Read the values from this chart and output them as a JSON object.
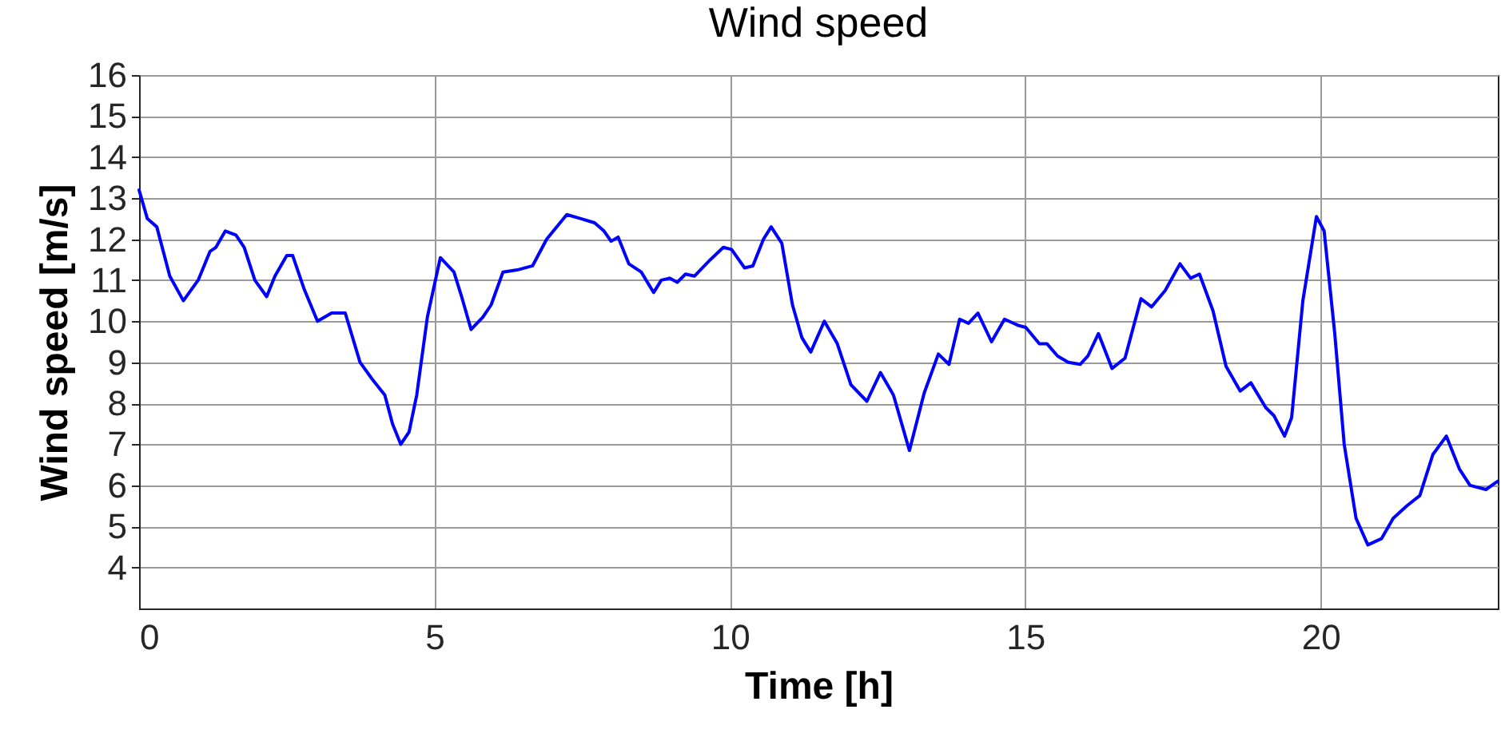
{
  "chart_data": {
    "type": "line",
    "title": "Wind speed",
    "xlabel": "Time [h]",
    "ylabel": "Wind speed [m/s]",
    "xlim": [
      0,
      23
    ],
    "xticks": [
      0,
      5,
      10,
      15,
      20
    ],
    "ylim": [
      3,
      16
    ],
    "yticks": [
      4,
      5,
      6,
      7,
      8,
      9,
      10,
      11,
      12,
      13,
      14,
      15,
      16
    ],
    "grid": true,
    "line_style": "solid",
    "series": [
      {
        "color": "#0000ff",
        "x": [
          0,
          0.14,
          0.3,
          0.52,
          0.75,
          1.0,
          1.2,
          1.3,
          1.46,
          1.64,
          1.78,
          1.96,
          2.16,
          2.3,
          2.5,
          2.6,
          2.79,
          3.02,
          3.26,
          3.49,
          3.74,
          3.94,
          4.16,
          4.29,
          4.43,
          4.57,
          4.7,
          4.88,
          5.1,
          5.33,
          5.46,
          5.62,
          5.82,
          5.96,
          6.16,
          6.4,
          6.66,
          6.9,
          7.24,
          7.48,
          7.71,
          7.87,
          7.99,
          8.11,
          8.29,
          8.5,
          8.71,
          8.84,
          8.98,
          9.11,
          9.25,
          9.4,
          9.67,
          9.89,
          10.03,
          10.25,
          10.39,
          10.57,
          10.7,
          10.88,
          11.06,
          11.22,
          11.37,
          11.6,
          11.82,
          12.05,
          12.32,
          12.55,
          12.77,
          13.04,
          13.29,
          13.53,
          13.71,
          13.89,
          14.04,
          14.2,
          14.43,
          14.65,
          14.88,
          15.01,
          15.24,
          15.37,
          15.55,
          15.73,
          15.93,
          16.06,
          16.24,
          16.47,
          16.69,
          16.96,
          17.14,
          17.37,
          17.62,
          17.8,
          17.95,
          18.18,
          18.4,
          18.64,
          18.82,
          19.07,
          19.21,
          19.39,
          19.51,
          19.7,
          19.93,
          20.06,
          20.24,
          20.4,
          20.6,
          20.8,
          21.03,
          21.23,
          21.46,
          21.68,
          21.9,
          22.13,
          22.35,
          22.53,
          22.8,
          23.0
        ],
        "values": [
          13.2,
          12.5,
          12.3,
          11.1,
          10.5,
          11.0,
          11.7,
          11.8,
          12.2,
          12.1,
          11.8,
          11.0,
          10.6,
          11.1,
          11.6,
          11.6,
          10.8,
          10.0,
          10.2,
          10.2,
          9.0,
          8.6,
          8.2,
          7.5,
          7.0,
          7.3,
          8.2,
          10.1,
          11.55,
          11.2,
          10.6,
          9.8,
          10.1,
          10.4,
          11.2,
          11.25,
          11.35,
          12.0,
          12.6,
          12.5,
          12.4,
          12.2,
          11.95,
          12.05,
          11.4,
          11.2,
          10.7,
          11.0,
          11.05,
          10.95,
          11.15,
          11.1,
          11.5,
          11.8,
          11.75,
          11.3,
          11.35,
          12.0,
          12.3,
          11.9,
          10.4,
          9.6,
          9.25,
          10.0,
          9.45,
          8.45,
          8.05,
          8.75,
          8.2,
          6.85,
          8.25,
          9.2,
          8.95,
          10.05,
          9.95,
          10.2,
          9.5,
          10.05,
          9.9,
          9.85,
          9.45,
          9.45,
          9.15,
          9.0,
          8.95,
          9.15,
          9.7,
          8.85,
          9.1,
          10.55,
          10.35,
          10.75,
          11.4,
          11.05,
          11.15,
          10.25,
          8.9,
          8.3,
          8.5,
          7.9,
          7.7,
          7.2,
          7.65,
          10.5,
          12.55,
          12.2,
          9.7,
          7.0,
          5.2,
          4.55,
          4.7,
          5.2,
          5.5,
          5.75,
          6.75,
          7.2,
          6.4,
          6.0,
          5.9,
          6.1
        ]
      }
    ]
  }
}
